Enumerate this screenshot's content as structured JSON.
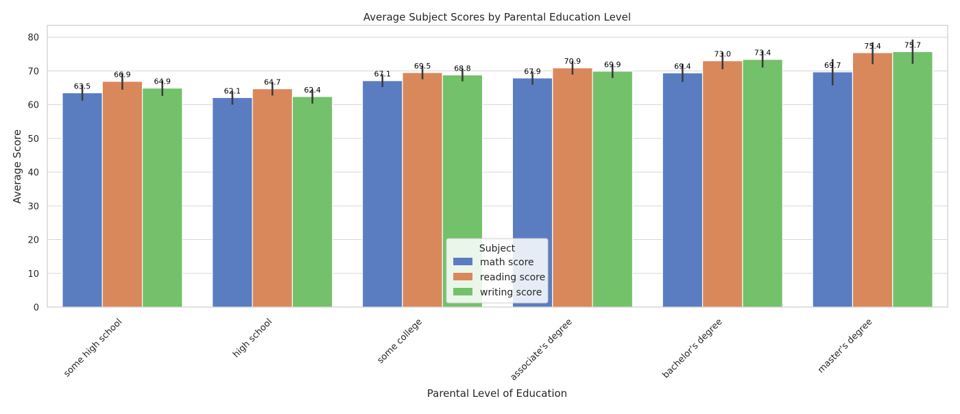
{
  "chart_data": {
    "type": "bar",
    "title": "Average Subject Scores by Parental Education Level",
    "xlabel": "Parental Level of Education",
    "ylabel": "Average Score",
    "ylim": [
      0,
      83.5
    ],
    "yticks": [
      0,
      10,
      20,
      30,
      40,
      50,
      60,
      70,
      80
    ],
    "grid": true,
    "legend_title": "Subject",
    "legend_position": "lower-center",
    "categories": [
      "some high school",
      "high school",
      "some college",
      "associate's degree",
      "bachelor's degree",
      "master's degree"
    ],
    "series": [
      {
        "name": "math score",
        "color": "#5a7dc2",
        "values": [
          63.5,
          62.1,
          67.1,
          67.9,
          69.4,
          69.7
        ],
        "err_low": [
          61.2,
          60.0,
          65.2,
          65.9,
          66.7,
          65.7
        ],
        "err_high": [
          65.8,
          64.1,
          69.0,
          69.8,
          72.1,
          73.5
        ]
      },
      {
        "name": "reading score",
        "color": "#d9885c",
        "values": [
          66.9,
          64.7,
          69.5,
          70.9,
          73.0,
          75.4
        ],
        "err_low": [
          64.4,
          62.7,
          67.5,
          68.9,
          70.5,
          72.0
        ],
        "err_high": [
          69.4,
          66.7,
          71.4,
          72.9,
          75.5,
          78.5
        ]
      },
      {
        "name": "writing score",
        "color": "#73c16a",
        "values": [
          64.9,
          62.4,
          68.8,
          69.9,
          73.4,
          75.7
        ],
        "err_low": [
          62.6,
          60.3,
          66.9,
          67.9,
          71.0,
          72.1
        ],
        "err_high": [
          67.2,
          64.5,
          70.7,
          71.9,
          75.9,
          79.3
        ]
      }
    ]
  }
}
